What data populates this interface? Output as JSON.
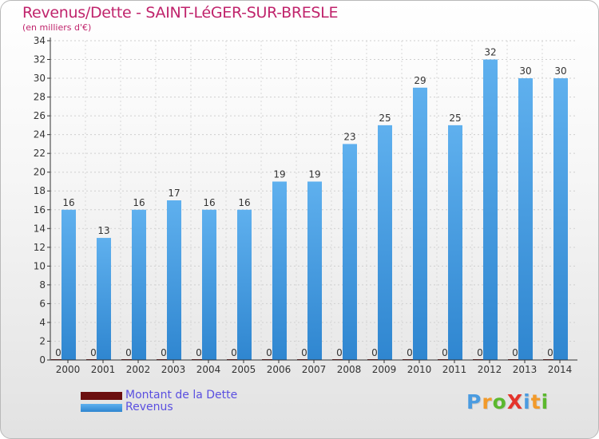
{
  "title": "Revenus/Dette - SAINT-LéGER-SUR-BRESLE",
  "subtitle": "(en milliers d'€)",
  "logo": {
    "text": "ProXiti",
    "colors": [
      "#4a9be0",
      "#f29a2a",
      "#5bb82e",
      "#e4342c",
      "#4a9be0",
      "#f29a2a",
      "#5bb82e"
    ]
  },
  "legend": [
    {
      "label": "Montant de la Dette",
      "color": "#6b0f0f"
    },
    {
      "label": "Revenus",
      "color": "#4a9fe3"
    }
  ],
  "chart_data": {
    "type": "bar",
    "categories": [
      "2000",
      "2001",
      "2002",
      "2003",
      "2004",
      "2005",
      "2006",
      "2007",
      "2008",
      "2009",
      "2010",
      "2011",
      "2012",
      "2013",
      "2014"
    ],
    "series": [
      {
        "name": "Montant de la Dette",
        "color": "#6b0f0f",
        "values": [
          0,
          0,
          0,
          0,
          0,
          0,
          0,
          0,
          0,
          0,
          0,
          0,
          0,
          0,
          0
        ]
      },
      {
        "name": "Revenus",
        "color": "#4a9fe3",
        "values": [
          16,
          13,
          16,
          17,
          16,
          16,
          19,
          19,
          23,
          25,
          29,
          25,
          32,
          30,
          30
        ]
      }
    ],
    "ylim": [
      0,
      34
    ],
    "yticks": [
      0,
      2,
      4,
      6,
      8,
      10,
      12,
      14,
      16,
      18,
      20,
      22,
      24,
      26,
      28,
      30,
      32,
      34
    ],
    "grid": true,
    "legend_position": "bottom-left"
  }
}
